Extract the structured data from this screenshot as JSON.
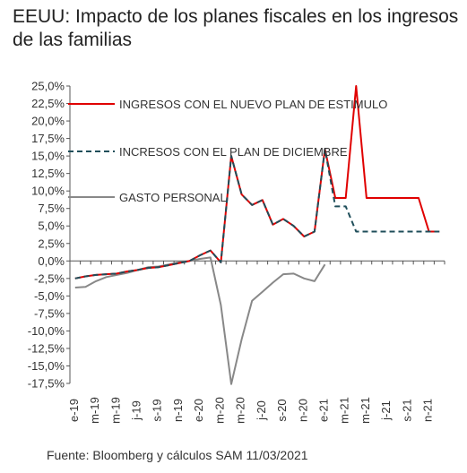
{
  "header": {
    "title": "EEUU: Impacto de los planes fiscales en los ingresos de las familias"
  },
  "footer": {
    "source": "Fuente: Bloomberg y cálculos SAM 11/03/2021"
  },
  "chart_data": {
    "type": "line",
    "title": "EEUU: Impacto de los planes fiscales en los ingresos de las familias",
    "xlabel": "",
    "ylabel": "",
    "ylim": [
      -17.5,
      25
    ],
    "ytick_step": 2.5,
    "y_tick_labels": [
      "25,0%",
      "22,5%",
      "20,0%",
      "17,5%",
      "15,0%",
      "12,5%",
      "10,0%",
      "7,5%",
      "5,0%",
      "2,5%",
      "0,0%",
      "-2,5%",
      "-5,0%",
      "-7,5%",
      "-10,0%",
      "-12,5%",
      "-15,0%",
      "-17,5%"
    ],
    "x_tick_labels": [
      "e-19",
      "m-19",
      "m-19",
      "j-19",
      "s-19",
      "n-19",
      "e-20",
      "m-20",
      "m-20",
      "j-20",
      "s-20",
      "n-20",
      "e-21",
      "m-21",
      "m-21",
      "j-21",
      "s-21",
      "n-21"
    ],
    "x": [
      "2019-01",
      "2019-02",
      "2019-03",
      "2019-04",
      "2019-05",
      "2019-06",
      "2019-07",
      "2019-08",
      "2019-09",
      "2019-10",
      "2019-11",
      "2019-12",
      "2020-01",
      "2020-02",
      "2020-03",
      "2020-04",
      "2020-05",
      "2020-06",
      "2020-07",
      "2020-08",
      "2020-09",
      "2020-10",
      "2020-11",
      "2020-12",
      "2021-01",
      "2021-02",
      "2021-03",
      "2021-04",
      "2021-05",
      "2021-06",
      "2021-07",
      "2021-08",
      "2021-09",
      "2021-10",
      "2021-11",
      "2021-12"
    ],
    "grid": false,
    "legend_position": "top-left",
    "series": [
      {
        "name": "INGRESOS CON EL NUEVO PLAN DE ESTIMULO",
        "color": "#e00000",
        "dash": "solid",
        "values": [
          -2.5,
          -2.2,
          -2.0,
          -1.9,
          -1.8,
          -1.5,
          -1.3,
          -1.0,
          -0.9,
          -0.6,
          -0.3,
          0.0,
          0.8,
          1.5,
          -0.2,
          15.0,
          9.5,
          8.0,
          8.7,
          5.2,
          6.0,
          5.0,
          3.5,
          4.2,
          16.0,
          9.0,
          9.0,
          25.0,
          9.0,
          9.0,
          9.0,
          9.0,
          9.0,
          9.0,
          4.2,
          4.2
        ]
      },
      {
        "name": "INCRESOS CON EL PLAN DE DICIEMBRE",
        "color": "#1f4e5a",
        "dash": "dashed",
        "values": [
          -2.5,
          -2.2,
          -2.0,
          -1.9,
          -1.8,
          -1.5,
          -1.3,
          -1.0,
          -0.9,
          -0.6,
          -0.3,
          0.0,
          0.8,
          1.5,
          -0.2,
          15.0,
          9.5,
          8.0,
          8.7,
          5.2,
          6.0,
          5.0,
          3.5,
          4.2,
          16.0,
          7.8,
          7.8,
          4.2,
          4.2,
          4.2,
          4.2,
          4.2,
          4.2,
          4.2,
          4.2,
          4.2
        ]
      },
      {
        "name": "GASTO PERSONAL",
        "color": "#888888",
        "dash": "solid",
        "values": [
          -3.8,
          -3.7,
          -2.9,
          -2.3,
          -2.0,
          -1.7,
          -1.3,
          -0.9,
          -0.8,
          -0.5,
          -0.2,
          0.0,
          0.3,
          0.5,
          -6.3,
          -17.6,
          -11.2,
          -5.7,
          -4.4,
          -3.1,
          -1.9,
          -1.8,
          -2.5,
          -2.9,
          -0.5,
          null,
          null,
          null,
          null,
          null,
          null,
          null,
          null,
          null,
          null,
          null
        ]
      }
    ]
  }
}
